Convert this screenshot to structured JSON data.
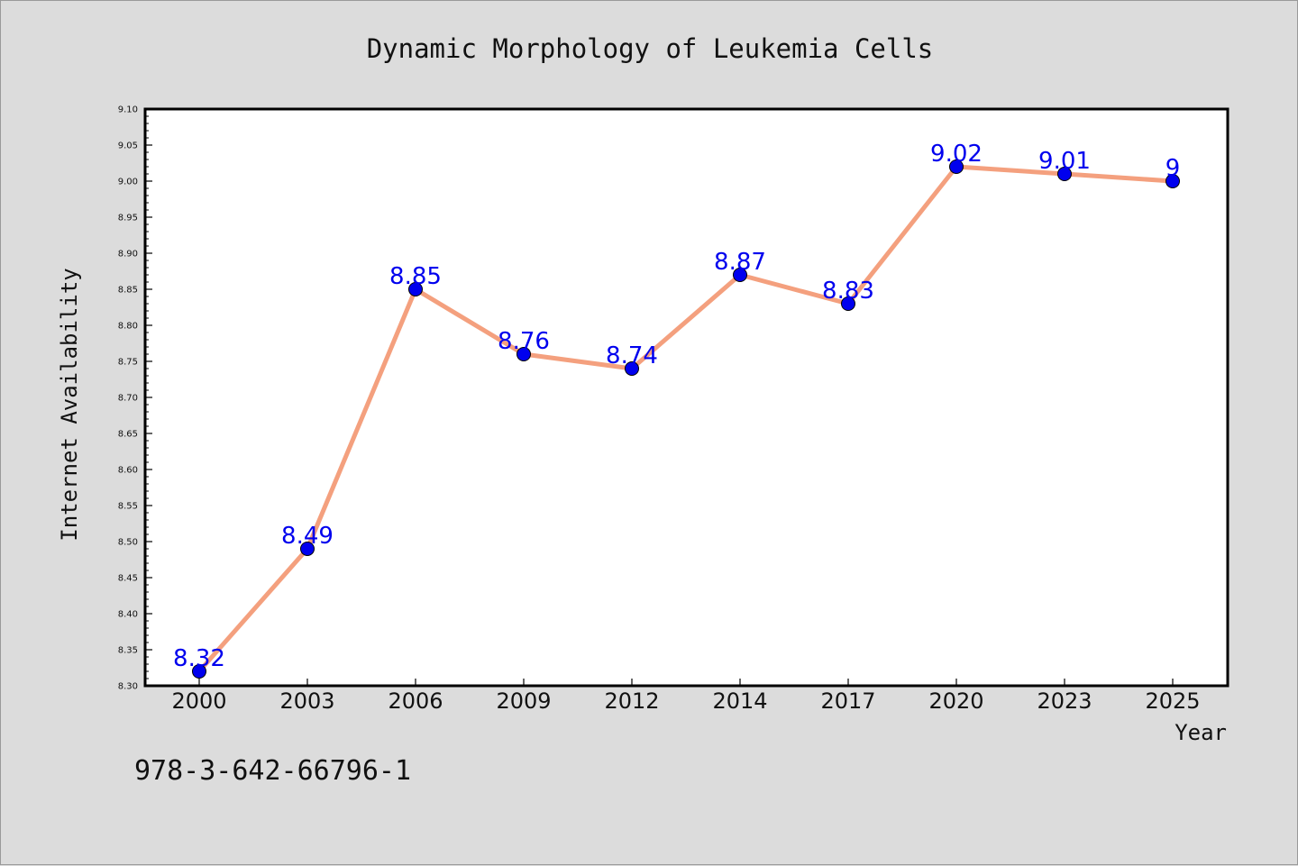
{
  "chart_data": {
    "type": "line",
    "title": "Dynamic Morphology of Leukemia Cells",
    "xlabel": "Year",
    "ylabel": "Internet Availability",
    "categories": [
      "2000",
      "2003",
      "2006",
      "2009",
      "2012",
      "2014",
      "2017",
      "2020",
      "2023",
      "2025"
    ],
    "data_labels": [
      "8.32",
      "8.49",
      "8.85",
      "8.76",
      "8.74",
      "8.87",
      "8.83",
      "9.02",
      "9.01",
      "9"
    ],
    "series": [
      {
        "values": [
          8.32,
          8.49,
          8.85,
          8.76,
          8.74,
          8.87,
          8.83,
          9.02,
          9.01,
          9.0
        ]
      }
    ],
    "ylim": [
      8.3,
      9.1
    ],
    "yticks": [
      "8.30",
      "8.35",
      "8.40",
      "8.45",
      "8.50",
      "8.55",
      "8.60",
      "8.65",
      "8.70",
      "8.75",
      "8.80",
      "8.85",
      "8.90",
      "8.95",
      "9.00",
      "9.05",
      "9.10"
    ],
    "grid": false,
    "line_color": "#f4a07e",
    "marker_color": "#0000ee",
    "label_color": "#0000ee",
    "plot_background": "#ffffff",
    "figure_background": "#dcdcdc"
  },
  "footer": {
    "isbn": "978-3-642-66796-1"
  }
}
